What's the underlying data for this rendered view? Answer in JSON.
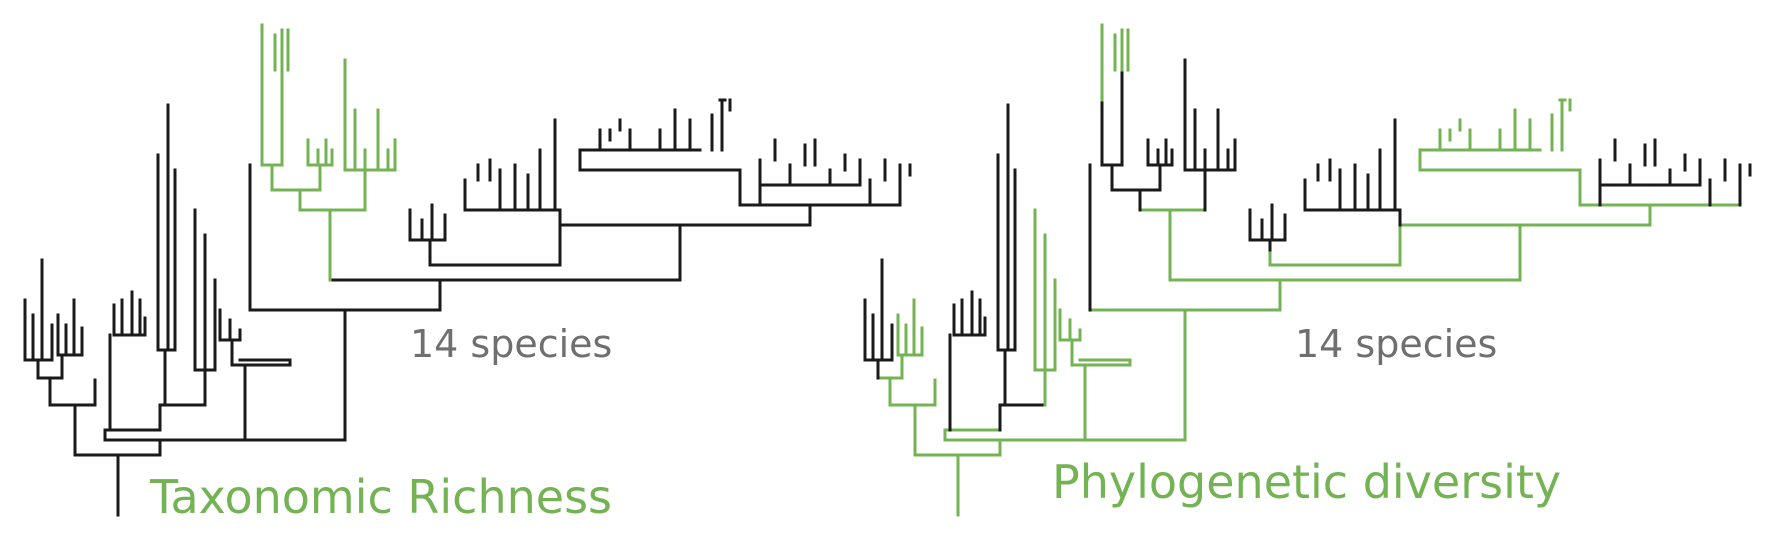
{
  "colors": {
    "tree": "#1a1a1a",
    "highlight": "#74b353",
    "count_text": "#6f6f6f"
  },
  "panels": [
    {
      "title": "Taxonomic Richness",
      "count_label": "14 species"
    },
    {
      "title": "Phylogenetic diversity",
      "count_label": "14 species"
    }
  ]
}
